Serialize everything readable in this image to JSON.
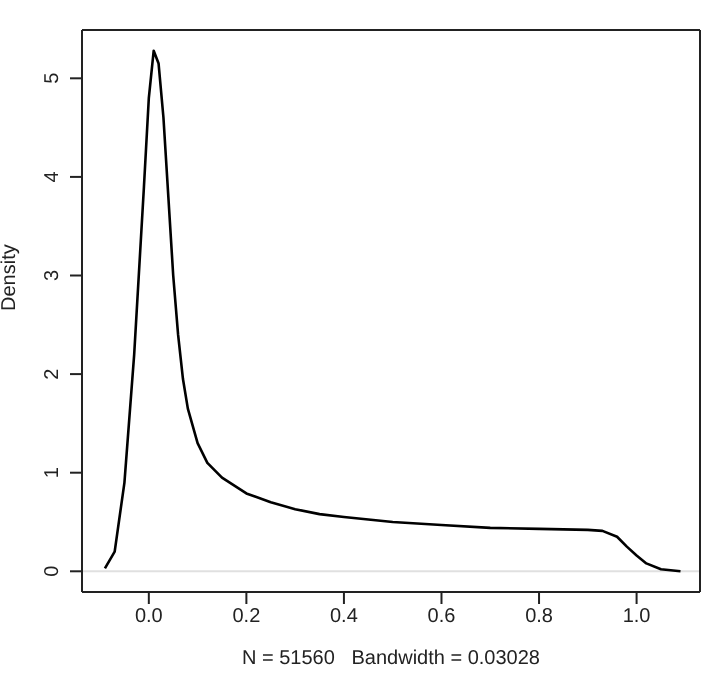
{
  "chart_data": {
    "type": "line",
    "xlabel": "N = 51560   Bandwidth = 0.03028",
    "ylabel": "Density",
    "x": [
      -0.09,
      -0.07,
      -0.05,
      -0.03,
      -0.01,
      0.0,
      0.01,
      0.02,
      0.03,
      0.04,
      0.05,
      0.06,
      0.07,
      0.08,
      0.1,
      0.12,
      0.15,
      0.2,
      0.25,
      0.3,
      0.35,
      0.4,
      0.5,
      0.6,
      0.7,
      0.8,
      0.9,
      0.93,
      0.96,
      0.98,
      1.0,
      1.02,
      1.05,
      1.09
    ],
    "series": [
      {
        "color": "#000000",
        "values": [
          0.03,
          0.2,
          0.9,
          2.2,
          3.9,
          4.8,
          5.28,
          5.15,
          4.6,
          3.8,
          3.0,
          2.4,
          1.95,
          1.65,
          1.3,
          1.1,
          0.95,
          0.79,
          0.7,
          0.63,
          0.58,
          0.55,
          0.5,
          0.47,
          0.44,
          0.43,
          0.42,
          0.41,
          0.35,
          0.25,
          0.16,
          0.08,
          0.02,
          0.0
        ]
      }
    ],
    "xlim": [
      -0.137,
      1.13
    ],
    "ylim": [
      -0.21,
      5.49
    ],
    "xticks": [
      {
        "value": 0,
        "label": "0.0"
      },
      {
        "value": 0.2,
        "label": "0.2"
      },
      {
        "value": 0.4,
        "label": "0.4"
      },
      {
        "value": 0.6,
        "label": "0.6"
      },
      {
        "value": 0.8,
        "label": "0.8"
      },
      {
        "value": 1,
        "label": "1.0"
      }
    ],
    "yticks": [
      0,
      1,
      2,
      3,
      4,
      5
    ],
    "ref_lines": [
      {
        "axis": "y",
        "value": 0,
        "color": "#e0e0e0"
      }
    ],
    "marker": "none",
    "line_style": "solid",
    "grid": false
  }
}
